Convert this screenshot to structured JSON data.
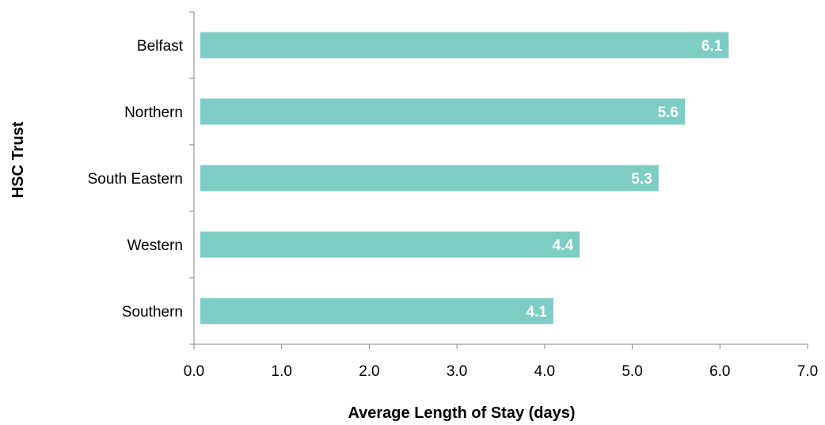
{
  "chart_data": {
    "type": "bar",
    "orientation": "horizontal",
    "categories": [
      "Belfast",
      "Northern",
      "South Eastern",
      "Western",
      "Southern"
    ],
    "values": [
      6.1,
      5.6,
      5.3,
      4.4,
      4.1
    ],
    "value_labels": [
      "6.1",
      "5.6",
      "5.3",
      "4.4",
      "4.1"
    ],
    "title": "",
    "xlabel": "Average Length of Stay (days)",
    "ylabel": "HSC Trust",
    "xlim": [
      0,
      7
    ],
    "xticks": [
      "0.0",
      "1.0",
      "2.0",
      "3.0",
      "4.0",
      "5.0",
      "6.0",
      "7.0"
    ],
    "grid": false,
    "legend": "none",
    "bar_color": "#7ECDC4",
    "value_label_color": "#FFFFFF",
    "axis_color": "#868686"
  }
}
